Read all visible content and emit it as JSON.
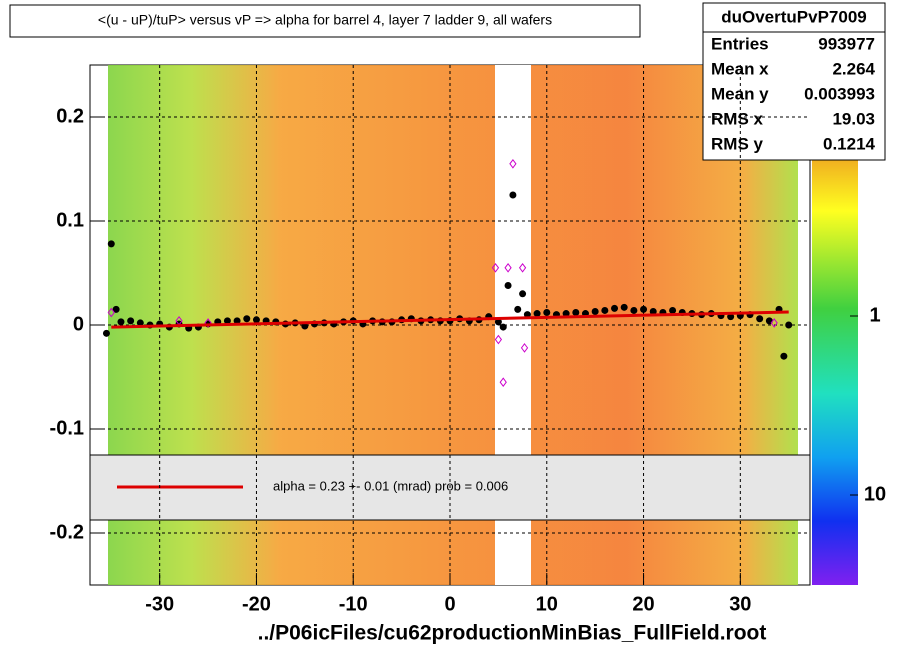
{
  "chart_data": {
    "type": "profile",
    "title": "<(u - uP)/tuP> versus   vP => alpha for barrel 4, layer 7 ladder 9, all wafers",
    "x_label": "../P06icFiles/cu62productionMinBias_FullField.root",
    "xlim": [
      -37.2,
      37.2
    ],
    "ylim": [
      -0.25,
      0.25
    ],
    "xticks": [
      -30,
      -20,
      -10,
      0,
      10,
      20,
      30
    ],
    "yticks": [
      0.2,
      0.1,
      0,
      -0.1,
      -0.2
    ],
    "grid": true,
    "series": [
      {
        "kind": "points",
        "color": "#000000",
        "x": [
          -35.5,
          -35,
          -34.5,
          -34,
          -33,
          -32,
          -31,
          -30,
          -29,
          -28,
          -27,
          -26,
          -25,
          -24,
          -23,
          -22,
          -21,
          -20,
          -19,
          -18,
          -17,
          -16,
          -15,
          -14,
          -13,
          -12,
          -11,
          -10,
          -9,
          -8,
          -7,
          -6,
          -5,
          -4,
          -3,
          -2,
          -1,
          0,
          1,
          2,
          3,
          4,
          5,
          5.5,
          6,
          6.5,
          7,
          7.5,
          8,
          9,
          10,
          11,
          12,
          13,
          14,
          15,
          16,
          17,
          18,
          19,
          20,
          21,
          22,
          23,
          24,
          25,
          26,
          27,
          28,
          29,
          30,
          31,
          32,
          33,
          34,
          34.5,
          35
        ],
        "values": [
          -0.008,
          0.078,
          0.015,
          0.003,
          0.004,
          0.002,
          0.0,
          0.001,
          -0.002,
          0.001,
          -0.003,
          -0.002,
          0.001,
          0.003,
          0.004,
          0.004,
          0.006,
          0.005,
          0.004,
          0.003,
          0.001,
          0.002,
          -0.001,
          0.001,
          0.002,
          0.001,
          0.003,
          0.004,
          0.001,
          0.004,
          0.003,
          0.003,
          0.005,
          0.006,
          0.004,
          0.005,
          0.004,
          0.004,
          0.006,
          0.004,
          0.005,
          0.008,
          0.003,
          -0.002,
          0.038,
          0.125,
          0.015,
          0.03,
          0.01,
          0.011,
          0.012,
          0.01,
          0.011,
          0.012,
          0.011,
          0.013,
          0.014,
          0.016,
          0.017,
          0.014,
          0.015,
          0.013,
          0.012,
          0.014,
          0.012,
          0.011,
          0.01,
          0.011,
          0.009,
          0.008,
          0.009,
          0.01,
          0.006,
          0.004,
          0.015,
          -0.03,
          0.0
        ]
      },
      {
        "kind": "diamonds",
        "color": "#cc00cc",
        "x": [
          -35,
          -28,
          -25,
          4.7,
          5,
          5.5,
          6,
          6.5,
          7.5,
          7.7,
          33.5
        ],
        "values": [
          0.012,
          0.004,
          0.002,
          0.055,
          -0.014,
          -0.055,
          0.055,
          0.155,
          0.055,
          -0.022,
          0.002
        ]
      },
      {
        "kind": "fit",
        "color": "#dd0000",
        "name": "alpha =    0.23 +-  0.01 (mrad) prob = 0.006",
        "x": [
          -35,
          35
        ],
        "values": [
          -0.002,
          0.0125
        ]
      }
    ],
    "colorbar": {
      "ticks": [
        1,
        10
      ]
    },
    "stats": {
      "name": "duOvertuPvP7009",
      "rows": [
        {
          "label": "Entries",
          "value": 993977
        },
        {
          "label": "Mean x",
          "value": 2.264
        },
        {
          "label": "Mean y",
          "value": 0.003993
        },
        {
          "label": "RMS x",
          "value": 19.03
        },
        {
          "label": "RMS y",
          "value": 0.1214
        }
      ]
    }
  }
}
